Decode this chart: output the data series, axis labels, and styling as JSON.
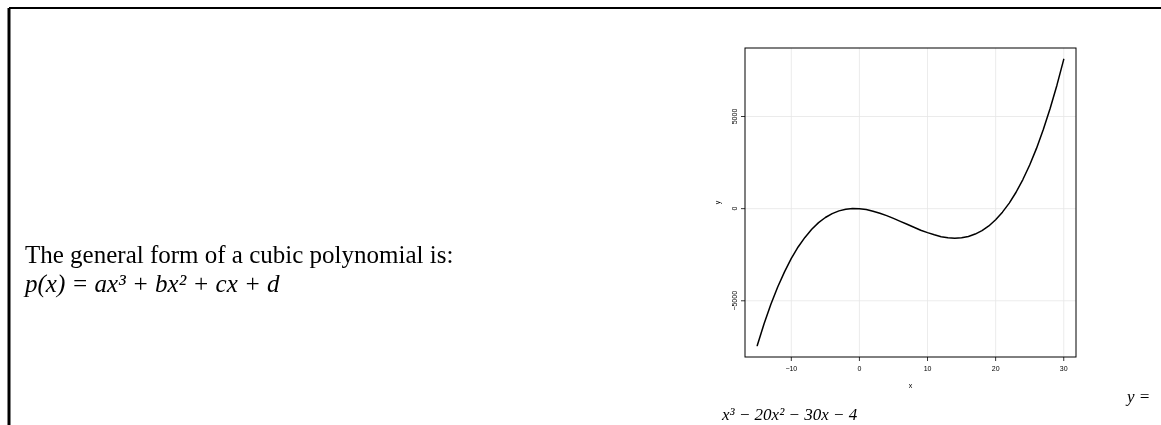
{
  "chart_data": {
    "type": "line",
    "xlabel": "x",
    "ylabel": "y",
    "annotations": [
      "The general form of a cubic polynomial is:",
      "p(x) = ax³ + bx² + cx + d",
      "y = x³ − 20x² − 30x − 4"
    ],
    "x": [
      -15,
      -14,
      -13,
      -12,
      -11,
      -10,
      -9,
      -8,
      -7,
      -6,
      -5,
      -4,
      -3,
      -2,
      -1,
      0,
      1,
      2,
      3,
      4,
      5,
      6,
      7,
      8,
      9,
      10,
      11,
      12,
      13,
      14,
      15,
      16,
      17,
      18,
      19,
      20,
      21,
      22,
      23,
      24,
      25,
      26,
      27,
      28,
      29,
      30
    ],
    "series": [
      {
        "color": "#000000",
        "values": [
          -7430,
          -6250,
          -5190,
          -4250,
          -3430,
          -2700,
          -2080,
          -1560,
          -1120,
          -760,
          -480,
          -270,
          -120,
          -30,
          10,
          0,
          -50,
          -140,
          -250,
          -380,
          -530,
          -690,
          -850,
          -1010,
          -1170,
          -1300,
          -1420,
          -1520,
          -1580,
          -1600,
          -1580,
          -1510,
          -1380,
          -1190,
          -940,
          -600,
          -190,
          300,
          890,
          1580,
          2370,
          3270,
          4290,
          5430,
          6700,
          8100
        ]
      }
    ],
    "xlim": [
      -16.8,
      31.8
    ],
    "ylim": [
      -8050,
      8717
    ],
    "xticks": [
      {
        "value": -10,
        "label": "−10"
      },
      0,
      10,
      20,
      30
    ],
    "yticks": [
      {
        "value": -5000,
        "label": "−5000"
      },
      0,
      5000
    ],
    "grid": true,
    "marker": "none",
    "line_style": "solid"
  }
}
